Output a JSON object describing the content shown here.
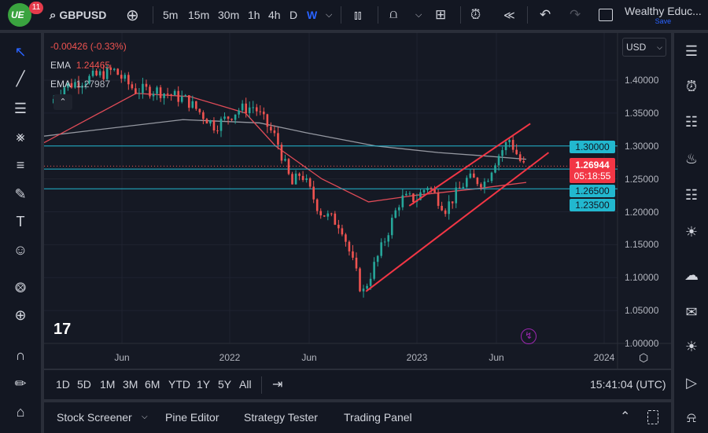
{
  "topbar": {
    "notification_count": "11",
    "symbol": "GBPUSD",
    "intervals": [
      "5m",
      "15m",
      "30m",
      "1h",
      "4h",
      "D",
      "W"
    ],
    "active_interval": "W",
    "layout_name": "Wealthy Educ...",
    "save_label": "Save"
  },
  "legend": {
    "change": "-0.00426 (-0.33%)",
    "ema1_label": "EMA",
    "ema1_value": "1.24465",
    "ema2_label": "EMA",
    "ema2_value": "1.27987"
  },
  "price_axis": {
    "currency": "USD",
    "labels": [
      "1.40000",
      "1.35000",
      "1.30000",
      "1.25000",
      "1.20000",
      "1.15000",
      "1.10000",
      "1.05000",
      "1.00000"
    ],
    "current_price": "1.26944",
    "countdown": "05:18:55",
    "level_tags": [
      "1.30000",
      "1.26500",
      "1.23500"
    ]
  },
  "time_axis": {
    "labels": [
      "Jun",
      "2022",
      "Jun",
      "2023",
      "Jun",
      "2024"
    ]
  },
  "range_bar": {
    "ranges": [
      "1D",
      "5D",
      "1M",
      "3M",
      "6M",
      "YTD",
      "1Y",
      "5Y",
      "All"
    ],
    "clock": "15:41:04 (UTC)"
  },
  "bottom_panel": {
    "tabs": [
      "Stock Screener",
      "Pine Editor",
      "Strategy Tester",
      "Trading Panel"
    ]
  },
  "colors": {
    "up": "#26a69a",
    "down": "#ef5350",
    "ema_fast": "#e04b57",
    "ema_slow": "#9598a1",
    "level": "#22b8cf",
    "trendline": "#f23645",
    "accent": "#2962ff"
  },
  "chart_data": {
    "type": "candlestick",
    "symbol": "GBPUSD",
    "interval": "W",
    "ylim": [
      1.0,
      1.42
    ],
    "price_path": [
      [
        "2021-01-20",
        1.365
      ],
      [
        "2021-02-15",
        1.39
      ],
      [
        "2021-05-25",
        1.415
      ],
      [
        "2021-07-05",
        1.385
      ],
      [
        "2021-08-15",
        1.385
      ],
      [
        "2021-10-15",
        1.37
      ],
      [
        "2021-12-10",
        1.33
      ],
      [
        "2022-01-25",
        1.355
      ],
      [
        "2022-02-25",
        1.36
      ],
      [
        "2022-04-10",
        1.31
      ],
      [
        "2022-05-10",
        1.24
      ],
      [
        "2022-05-28",
        1.26
      ],
      [
        "2022-07-05",
        1.2
      ],
      [
        "2022-08-15",
        1.18
      ],
      [
        "2022-09-26",
        1.075
      ],
      [
        "2022-11-05",
        1.15
      ],
      [
        "2022-12-10",
        1.22
      ],
      [
        "2023-01-10",
        1.22
      ],
      [
        "2023-02-01",
        1.24
      ],
      [
        "2023-03-08",
        1.205
      ],
      [
        "2023-04-20",
        1.25
      ],
      [
        "2023-05-25",
        1.245
      ],
      [
        "2023-06-15",
        1.28
      ],
      [
        "2023-07-12",
        1.31
      ],
      [
        "2023-08-07",
        1.26944
      ]
    ],
    "ema_fast": [
      [
        "2021-01-01",
        1.305
      ],
      [
        "2021-07-01",
        1.38
      ],
      [
        "2021-10-15",
        1.375
      ],
      [
        "2022-02-01",
        1.35
      ],
      [
        "2022-04-01",
        1.3
      ],
      [
        "2022-07-01",
        1.25
      ],
      [
        "2022-10-01",
        1.215
      ],
      [
        "2023-01-01",
        1.225
      ],
      [
        "2023-05-01",
        1.235
      ],
      [
        "2023-08-07",
        1.24465
      ]
    ],
    "ema_slow": [
      [
        "2021-01-01",
        1.315
      ],
      [
        "2021-10-01",
        1.34
      ],
      [
        "2022-03-01",
        1.335
      ],
      [
        "2022-06-01",
        1.32
      ],
      [
        "2022-10-15",
        1.3
      ],
      [
        "2023-02-15",
        1.29
      ],
      [
        "2023-05-15",
        1.285
      ],
      [
        "2023-08-07",
        1.27987
      ]
    ],
    "horizontal_levels": [
      1.3,
      1.265,
      1.235
    ],
    "trendlines": [
      {
        "from": [
          "2022-09-26",
          1.079
        ],
        "to": [
          "2023-09-20",
          1.29
        ]
      },
      {
        "from": [
          "2022-12-20",
          1.209
        ],
        "to": [
          "2023-08-15",
          1.334
        ]
      }
    ]
  }
}
